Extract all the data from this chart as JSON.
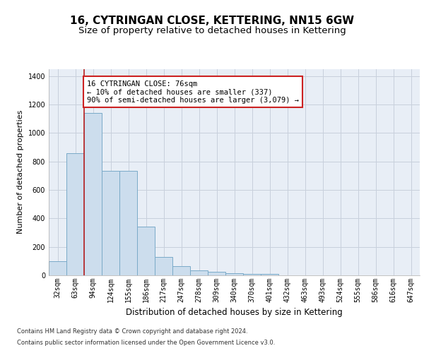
{
  "title": "16, CYTRINGAN CLOSE, KETTERING, NN15 6GW",
  "subtitle": "Size of property relative to detached houses in Kettering",
  "xlabel": "Distribution of detached houses by size in Kettering",
  "ylabel": "Number of detached properties",
  "categories": [
    "32sqm",
    "63sqm",
    "94sqm",
    "124sqm",
    "155sqm",
    "186sqm",
    "217sqm",
    "247sqm",
    "278sqm",
    "309sqm",
    "340sqm",
    "370sqm",
    "401sqm",
    "432sqm",
    "463sqm",
    "493sqm",
    "524sqm",
    "555sqm",
    "586sqm",
    "616sqm",
    "647sqm"
  ],
  "values": [
    100,
    860,
    1140,
    735,
    735,
    340,
    130,
    65,
    35,
    25,
    15,
    12,
    10,
    0,
    0,
    0,
    0,
    0,
    0,
    0,
    0
  ],
  "bar_color": "#ccdded",
  "bar_edge_color": "#7aaac8",
  "vline_color": "#bb2020",
  "annotation_text": "16 CYTRINGAN CLOSE: 76sqm\n← 10% of detached houses are smaller (337)\n90% of semi-detached houses are larger (3,079) →",
  "annotation_box_color": "#ffffff",
  "annotation_box_edge": "#cc2222",
  "ylim": [
    0,
    1450
  ],
  "yticks": [
    0,
    200,
    400,
    600,
    800,
    1000,
    1200,
    1400
  ],
  "axes_background": "#e8eef6",
  "grid_color": "#c8d0dc",
  "footer1": "Contains HM Land Registry data © Crown copyright and database right 2024.",
  "footer2": "Contains public sector information licensed under the Open Government Licence v3.0.",
  "title_fontsize": 11,
  "subtitle_fontsize": 9.5,
  "xlabel_fontsize": 8.5,
  "ylabel_fontsize": 8,
  "tick_fontsize": 7,
  "annotation_fontsize": 7.5,
  "footer_fontsize": 6
}
